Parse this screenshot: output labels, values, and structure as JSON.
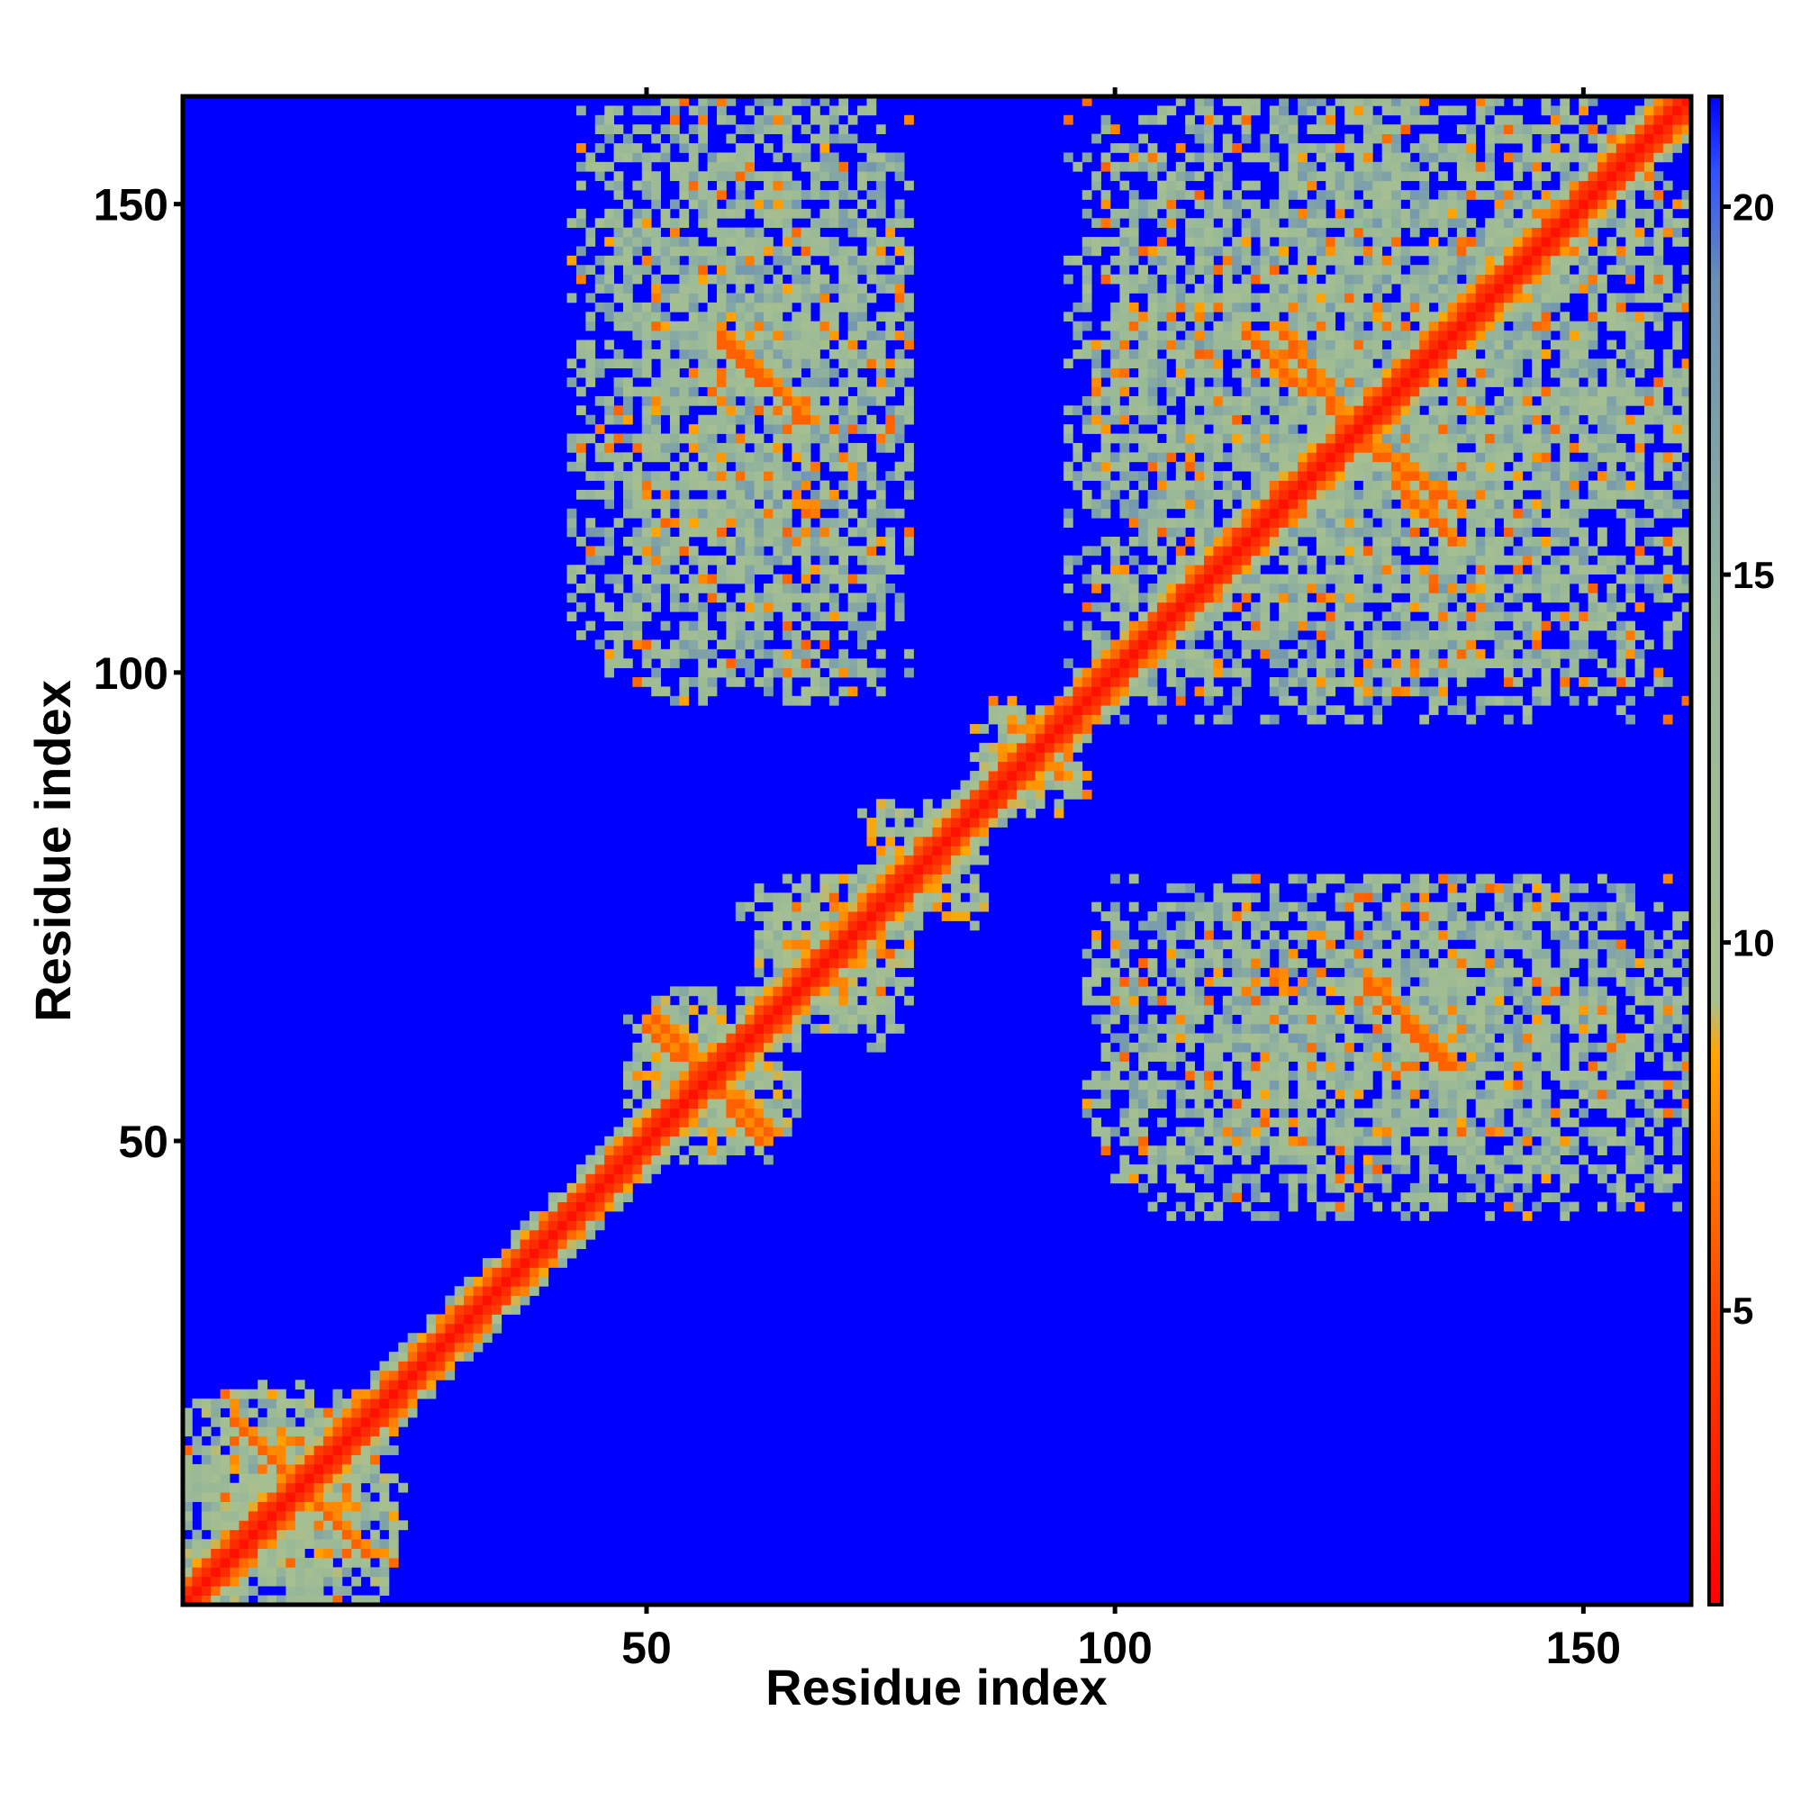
{
  "chart_data": {
    "type": "heatmap",
    "title": "",
    "xlabel": "Residue index",
    "ylabel": "Residue index",
    "xlim": [
      1,
      161
    ],
    "ylim": [
      1,
      161
    ],
    "x_ticks": [
      50,
      100,
      150
    ],
    "y_ticks": [
      50,
      100,
      150
    ],
    "colorbar": {
      "ticks": [
        5,
        10,
        15,
        20
      ],
      "range": [
        1,
        21.5
      ],
      "stops": [
        {
          "value": 1,
          "color": "#ff0000"
        },
        {
          "value": 5,
          "color": "#ff4500"
        },
        {
          "value": 8.5,
          "color": "#ffa500"
        },
        {
          "value": 9.2,
          "color": "#a8c090"
        },
        {
          "value": 14,
          "color": "#98b898"
        },
        {
          "value": 19,
          "color": "#6a8fb5"
        },
        {
          "value": 20.5,
          "color": "#3050ff"
        },
        {
          "value": 21.5,
          "color": "#0000ff"
        }
      ]
    },
    "background_value": 21.5,
    "description_of_values": "Pairwise residue distances; near-diagonal values approximately 1-5, contact clusters approximately 8-18, remainder >= 21.5 (blue).",
    "diagonal": {
      "start": 1,
      "end": 161,
      "core_value": 2,
      "orange_band": 7,
      "green_band": 13
    },
    "contact_clusters": [
      {
        "x": [
          1,
          23
        ],
        "y": [
          1,
          24
        ],
        "value": 13,
        "density": 0.85
      },
      {
        "x": [
          50,
          66
        ],
        "y": [
          48,
          64
        ],
        "value": 12,
        "density": 0.8
      },
      {
        "x": [
          60,
          78
        ],
        "y": [
          63,
          77
        ],
        "value": 12,
        "density": 0.75
      },
      {
        "x": [
          73,
          86
        ],
        "y": [
          73,
          86
        ],
        "value": 12,
        "density": 0.75
      },
      {
        "x": [
          85,
          96
        ],
        "y": [
          85,
          97
        ],
        "value": 12,
        "density": 0.75
      },
      {
        "x": [
          42,
          78
        ],
        "y": [
          98,
          161
        ],
        "value": 14,
        "density": 0.62
      },
      {
        "x": [
          97,
          161
        ],
        "y": [
          95,
          161
        ],
        "value": 14,
        "density": 0.62
      },
      {
        "x": [
          97,
          161
        ],
        "y": [
          46,
          78
        ],
        "value": 14,
        "density": 0.58
      }
    ],
    "contact_lines": [
      {
        "from": [
          51,
          63
        ],
        "to": [
          62,
          50
        ],
        "value": 6
      },
      {
        "from": [
          58,
          135
        ],
        "to": [
          67,
          127
        ],
        "value": 6
      },
      {
        "from": [
          118,
          136
        ],
        "to": [
          124,
          127
        ],
        "value": 6
      },
      {
        "from": [
          130,
          120
        ],
        "to": [
          136,
          114
        ],
        "value": 6
      },
      {
        "from": [
          128,
          66
        ],
        "to": [
          136,
          58
        ],
        "value": 6
      },
      {
        "from": [
          6,
          20
        ],
        "to": [
          19,
          7
        ],
        "value": 6
      }
    ]
  }
}
